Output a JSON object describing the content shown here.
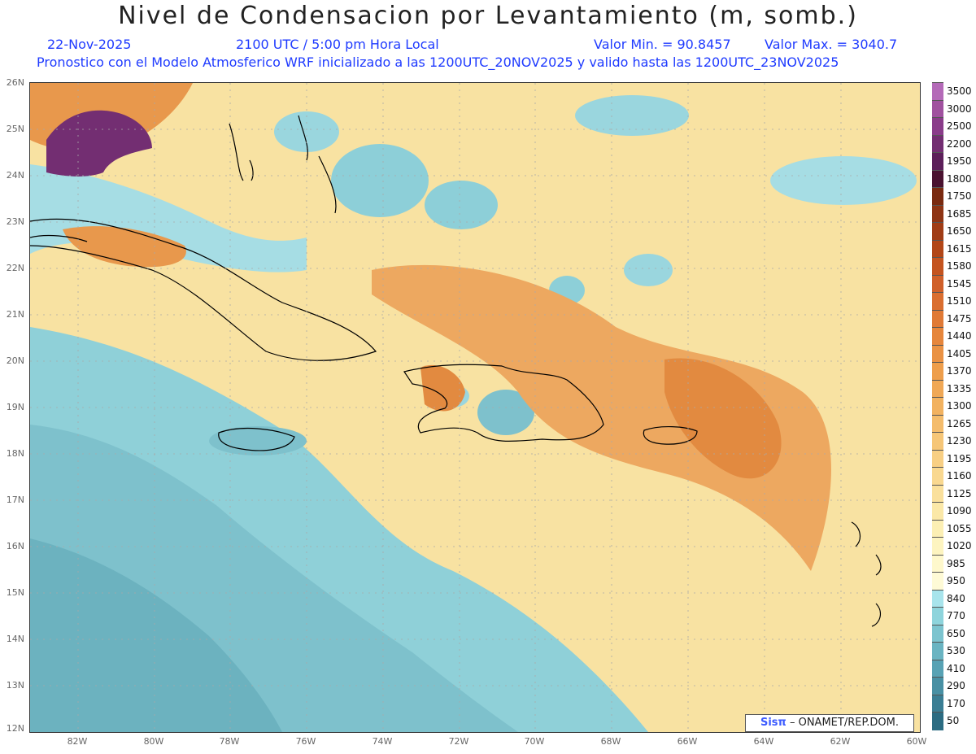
{
  "header": {
    "title": "Nivel de Condensacion por Levantamiento (m, somb.)",
    "date": "22-Nov-2025",
    "time": "2100 UTC / 5:00 pm Hora Local",
    "min_label": "Valor Min. = 90.8457",
    "max_label": "Valor Max. = 3040.7",
    "forecast_note": "Pronostico con el Modelo Atmosferico WRF inicializado a las 1200UTC_20NOV2025 y valido hasta las  1200UTC_23NOV2025"
  },
  "map": {
    "lat_labels": [
      "26N",
      "25N",
      "24N",
      "23N",
      "22N",
      "21N",
      "20N",
      "19N",
      "18N",
      "17N",
      "16N",
      "15N",
      "14N",
      "13N",
      "12N"
    ],
    "lon_labels": [
      "82W",
      "80W",
      "78W",
      "76W",
      "74W",
      "72W",
      "70W",
      "68W",
      "66W",
      "64W",
      "62W",
      "60W"
    ],
    "projection_extent": {
      "lon": [
        -83.2,
        -60.0
      ],
      "lat": [
        11.9,
        26.1
      ]
    }
  },
  "colorbar": {
    "labels": [
      "3500",
      "3000",
      "2500",
      "2200",
      "1950",
      "1800",
      "1750",
      "1685",
      "1650",
      "1615",
      "1580",
      "1545",
      "1510",
      "1475",
      "1440",
      "1405",
      "1370",
      "1335",
      "1300",
      "1265",
      "1230",
      "1195",
      "1160",
      "1125",
      "1090",
      "1055",
      "1020",
      "985",
      "950",
      "840",
      "770",
      "650",
      "530",
      "410",
      "290",
      "170",
      "50"
    ],
    "colors": [
      "#b46ab8",
      "#a0519f",
      "#8a3c8a",
      "#732e72",
      "#5c1f5a",
      "#4a1230",
      "#7a2a10",
      "#8e3414",
      "#a03c16",
      "#b24618",
      "#c45420",
      "#d0602a",
      "#da6e30",
      "#e07a36",
      "#e6863c",
      "#ea9244",
      "#ee9e4c",
      "#f0a856",
      "#f2b260",
      "#f4bc6c",
      "#f6c678",
      "#f8cf84",
      "#f9d890",
      "#fae09c",
      "#fbe8a8",
      "#fcefb4",
      "#fdf4c0",
      "#fef8cc",
      "#fefad6",
      "#a8e4ec",
      "#8ed4dc",
      "#7cc4cf",
      "#6ab4c2",
      "#58a2b4",
      "#4890a4",
      "#3a7e94",
      "#2c6c82"
    ]
  },
  "credit": {
    "logo": "Sisπ",
    "text": "– ONAMET/REP.DOM."
  }
}
